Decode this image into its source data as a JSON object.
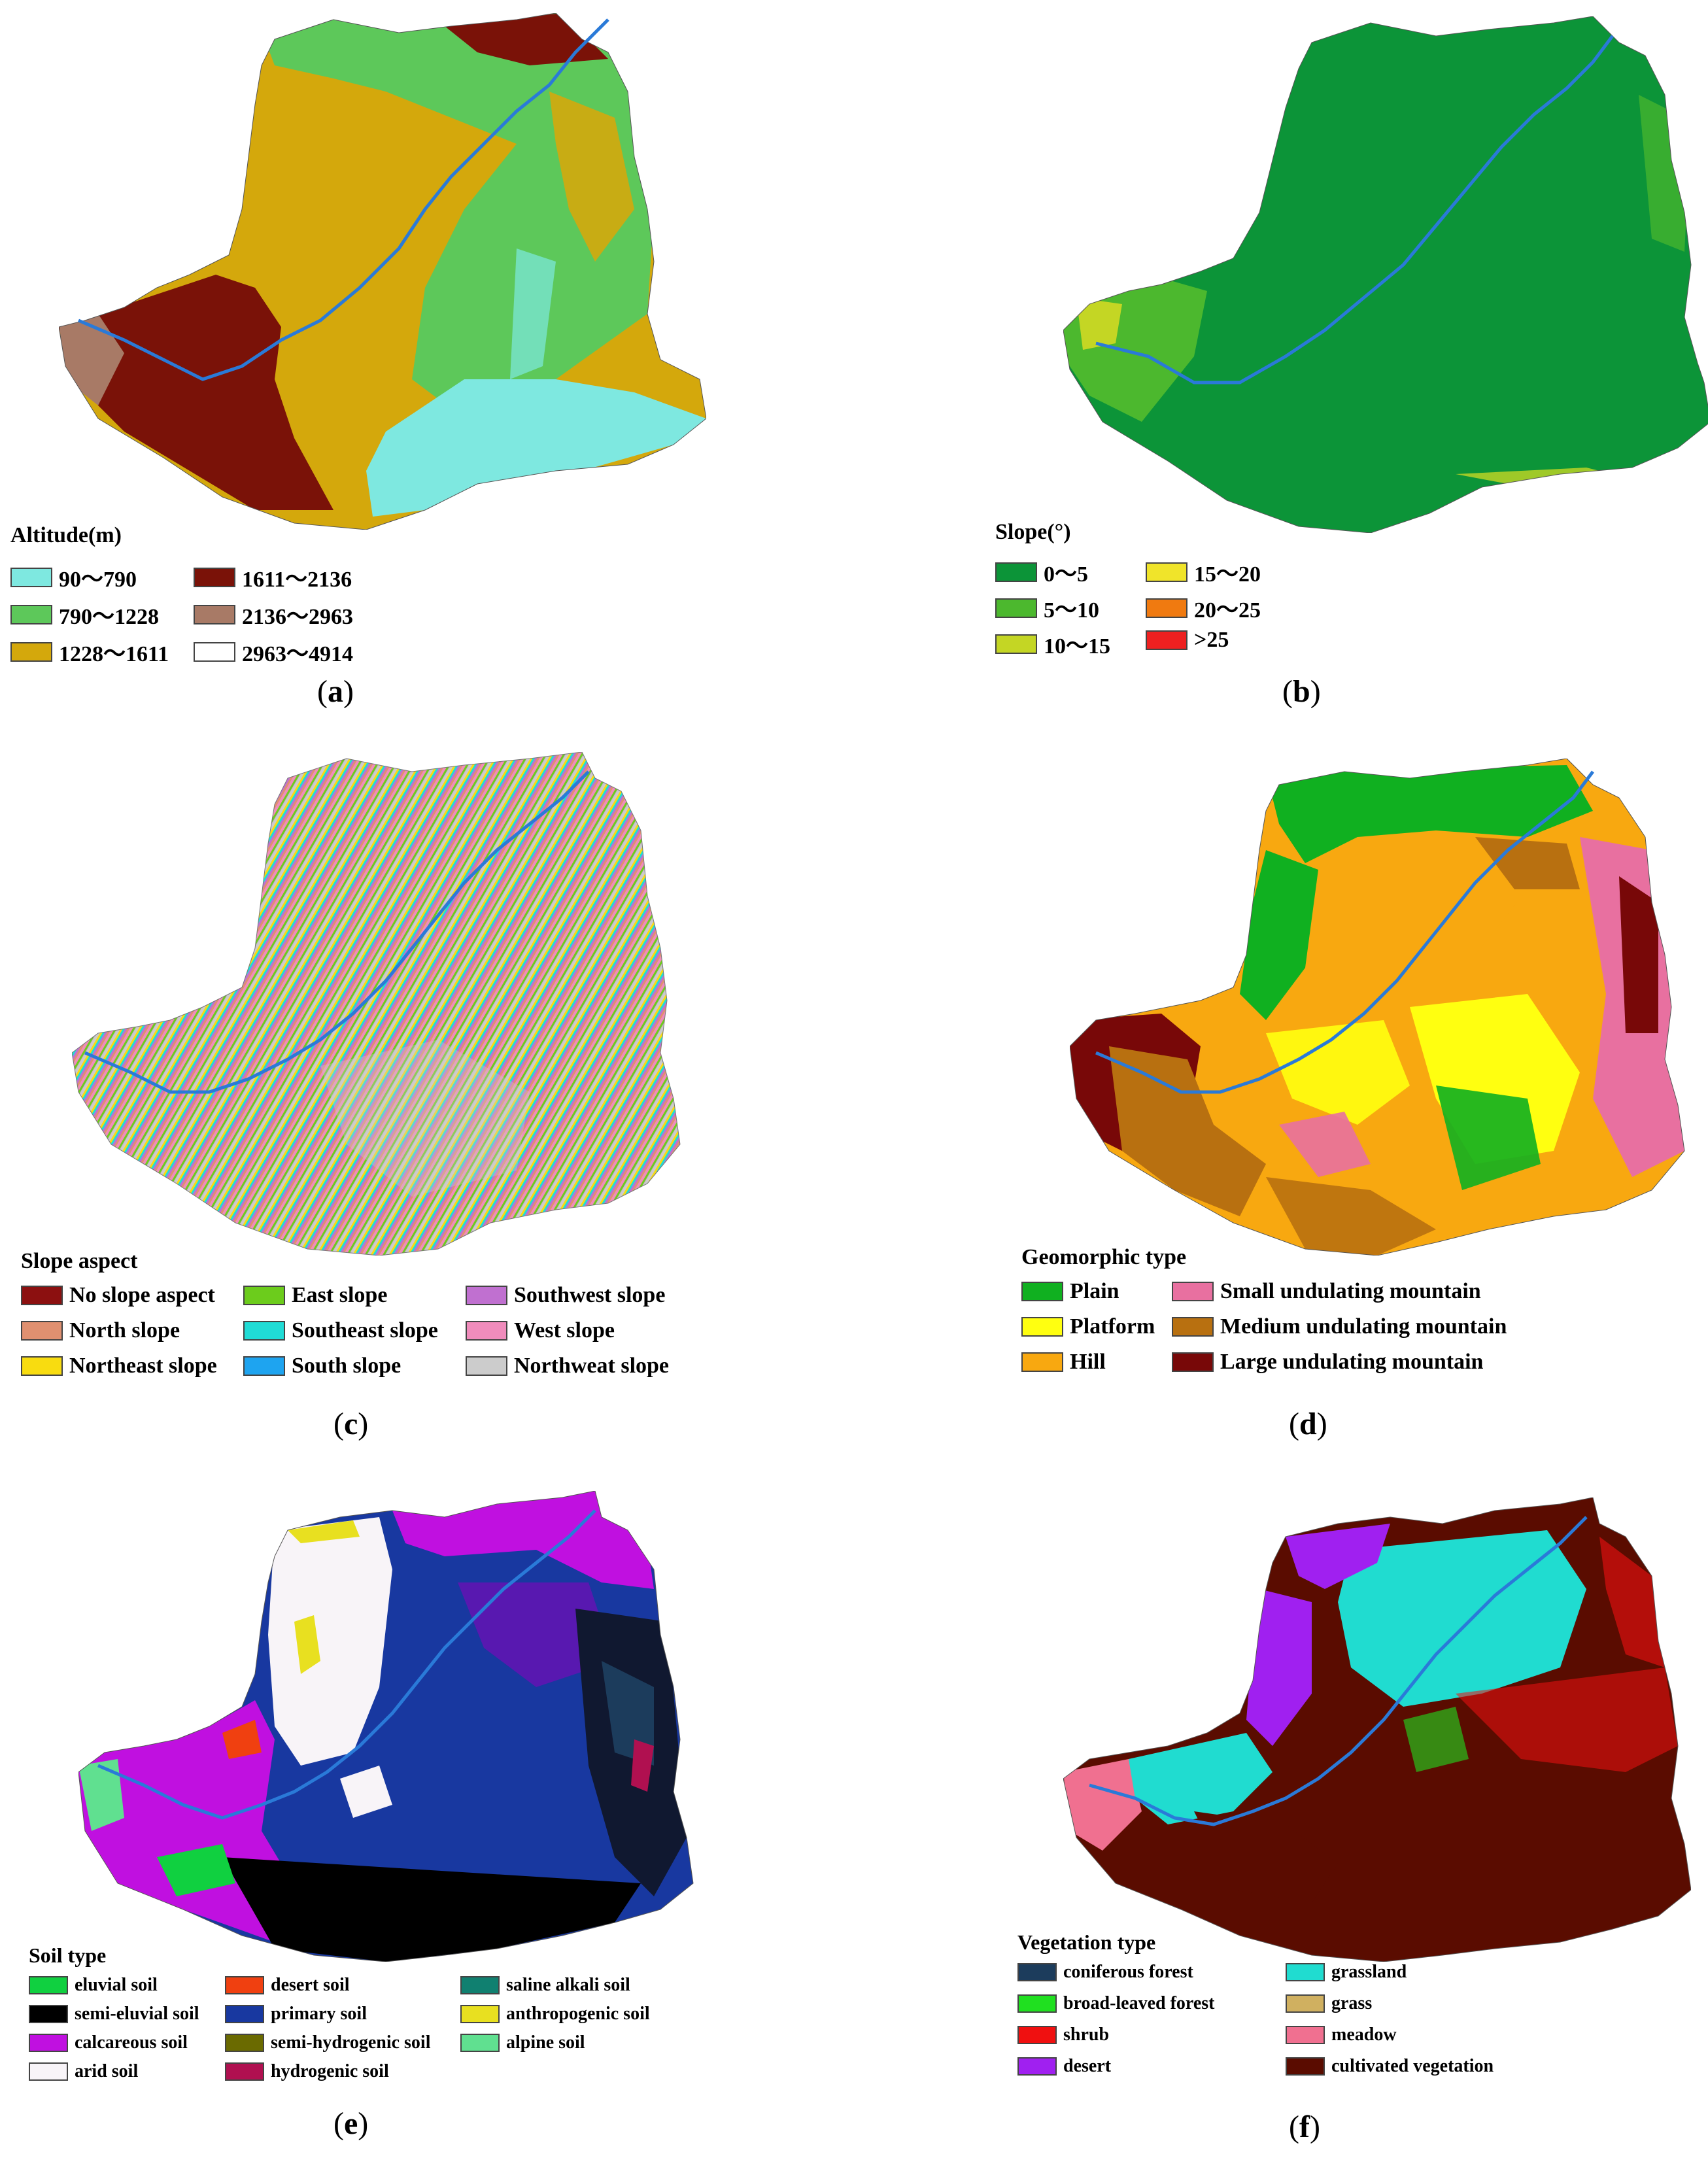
{
  "panels": [
    {
      "id": "a",
      "caption_letter": "a",
      "legend_title": "Altitude(m)",
      "legend": [
        {
          "label": "90～790",
          "color": "#7ee8e0"
        },
        {
          "label": "1611～2136",
          "color": "#7a1208"
        },
        {
          "label": "790～1228",
          "color": "#5dc85a"
        },
        {
          "label": "2136～2963",
          "color": "#a87a66"
        },
        {
          "label": "1228～1611",
          "color": "#d4a80c"
        },
        {
          "label": "2963～4914",
          "color": "#ffffff"
        }
      ]
    },
    {
      "id": "b",
      "caption_letter": "b",
      "legend_title": "Slope(°)",
      "legend": [
        {
          "label": "0～5",
          "color": "#0c9438"
        },
        {
          "label": "15～20",
          "color": "#f0e42a"
        },
        {
          "label": "5～10",
          "color": "#4cb82e"
        },
        {
          "label": "20～25",
          "color": "#f07a10"
        },
        {
          "label": "10～15",
          "color": "#c4d624"
        },
        {
          "label": ">25",
          "color": "#ee2020"
        }
      ]
    },
    {
      "id": "c",
      "caption_letter": "c",
      "legend_title": "Slope aspect",
      "legend": [
        {
          "label": "No slope aspect",
          "color": "#8c1010"
        },
        {
          "label": "East slope",
          "color": "#6ccc1c"
        },
        {
          "label": "Southwest slope",
          "color": "#c070d0"
        },
        {
          "label": "North slope",
          "color": "#e09070"
        },
        {
          "label": "Southeast slope",
          "color": "#20dcd6"
        },
        {
          "label": "West slope",
          "color": "#f08cbc"
        },
        {
          "label": "Northeast slope",
          "color": "#f8dc10"
        },
        {
          "label": "South slope",
          "color": "#1ea4f0"
        },
        {
          "label": "Northweat slope",
          "color": "#cccccc"
        }
      ]
    },
    {
      "id": "d",
      "caption_letter": "d",
      "legend_title": "Geomorphic type",
      "legend": [
        {
          "label": "Plain",
          "color": "#10b020"
        },
        {
          "label": "Small undulating mountain",
          "color": "#e870a0"
        },
        {
          "label": "Platform",
          "color": "#ffff10"
        },
        {
          "label": "Medium undulating mountain",
          "color": "#b87010"
        },
        {
          "label": "Hill",
          "color": "#f8a810"
        },
        {
          "label": "Large undulating mountain",
          "color": "#780808"
        }
      ]
    },
    {
      "id": "e",
      "caption_letter": "e",
      "legend_title": "Soil type",
      "legend": [
        {
          "label": "eluvial soil",
          "color": "#10d040"
        },
        {
          "label": "desert soil",
          "color": "#f04010"
        },
        {
          "label": "saline alkali soil",
          "color": "#108070"
        },
        {
          "label": "semi-eluvial soil",
          "color": "#000000"
        },
        {
          "label": "primary soil",
          "color": "#1838a0"
        },
        {
          "label": "anthropogenic soil",
          "color": "#e8e020"
        },
        {
          "label": "calcareous soil",
          "color": "#c010e0"
        },
        {
          "label": "semi-hydrogenic soil",
          "color": "#6a6a00"
        },
        {
          "label": "alpine soil",
          "color": "#60e090"
        },
        {
          "label": "arid soil",
          "color": "#f8f4f8"
        },
        {
          "label": "hydrogenic soil",
          "color": "#b01050"
        }
      ]
    },
    {
      "id": "f",
      "caption_letter": "f",
      "legend_title": "Vegetation type",
      "legend": [
        {
          "label": "coniferous forest",
          "color": "#1c3c5c"
        },
        {
          "label": "grassland",
          "color": "#20dcd0"
        },
        {
          "label": "broad-leaved forest",
          "color": "#20e020"
        },
        {
          "label": "grass",
          "color": "#d0b060"
        },
        {
          "label": "shrub",
          "color": "#f01010"
        },
        {
          "label": "meadow",
          "color": "#f07090"
        },
        {
          "label": "desert",
          "color": "#a020f0"
        },
        {
          "label": "cultivated vegetation",
          "color": "#5a0c00"
        }
      ]
    }
  ],
  "river_color": "#2a7ad8"
}
